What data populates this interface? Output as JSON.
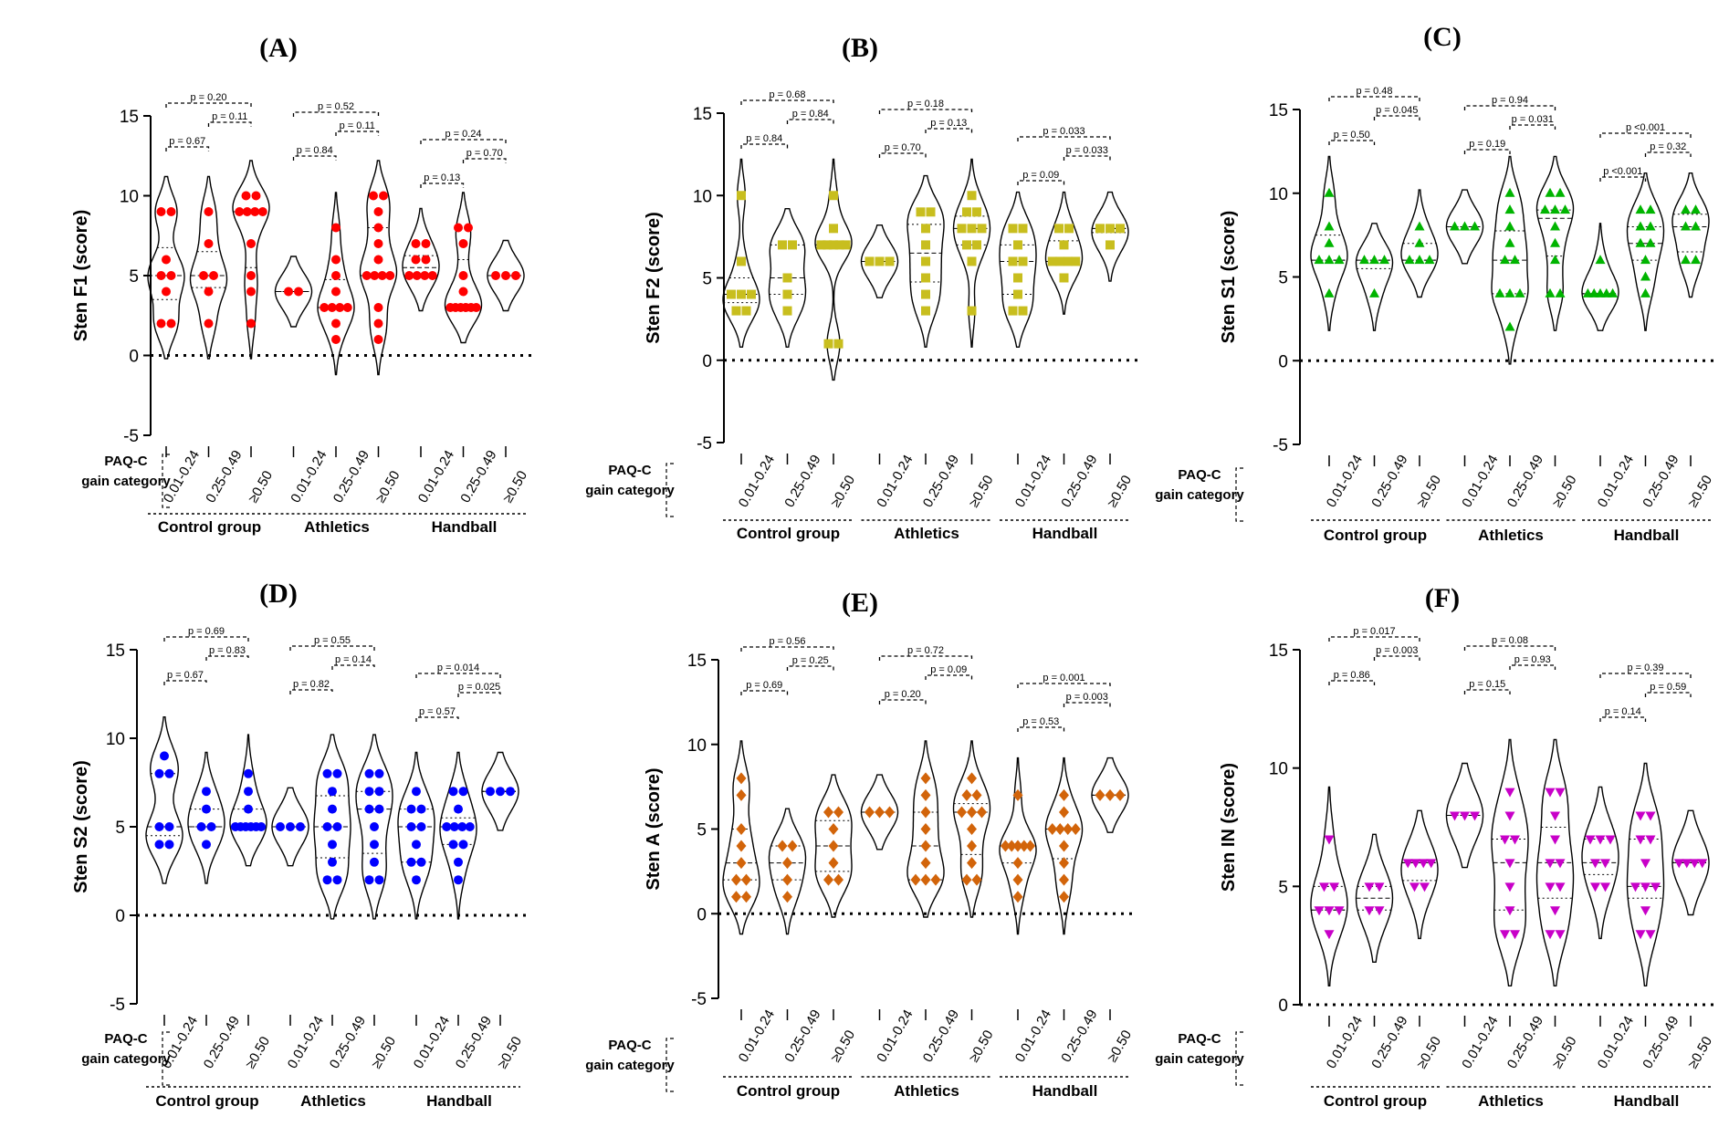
{
  "chart_data": [
    {
      "id": "A",
      "title": "(A)",
      "type": "violin",
      "ylabel": "Sten F1 (score)",
      "color": "#ff0000",
      "marker": "circle",
      "ylim": [
        -5,
        15
      ],
      "yticks": [
        -5,
        0,
        5,
        10,
        15
      ],
      "xlabel_title": [
        "PAQ-C",
        "gain category"
      ],
      "categories": [
        "0.01-0.24",
        "0.25-0.49",
        "≥0.50",
        "0.01-0.24",
        "0.25-0.49",
        "≥0.50",
        "0.01-0.24",
        "0.25-0.49",
        "≥0.50"
      ],
      "groups": [
        "Control group",
        "Athletics",
        "Handball"
      ],
      "points": [
        [
          9,
          9,
          6,
          5,
          5,
          4,
          2,
          2
        ],
        [
          9,
          7,
          5,
          5,
          4,
          2
        ],
        [
          10,
          10,
          9,
          9,
          9,
          9,
          7,
          5,
          4,
          2
        ],
        [
          4,
          4
        ],
        [
          8,
          6,
          5,
          4,
          3,
          3,
          3,
          3,
          2,
          1
        ],
        [
          10,
          10,
          9,
          8,
          7,
          6,
          5,
          5,
          5,
          5,
          3,
          2,
          1
        ],
        [
          7,
          7,
          6,
          6,
          5,
          5,
          5,
          5
        ],
        [
          8,
          8,
          7,
          5,
          4,
          3,
          3,
          3,
          3,
          3,
          3
        ],
        [
          5,
          5,
          5
        ]
      ],
      "comparisons": [
        {
          "from": 0,
          "to": 2,
          "label": "p = 0.20"
        },
        {
          "from": 0,
          "to": 1,
          "label": "p = 0.67"
        },
        {
          "from": 1,
          "to": 2,
          "label": "p = 0.11"
        },
        {
          "from": 3,
          "to": 5,
          "label": "p = 0.52"
        },
        {
          "from": 3,
          "to": 4,
          "label": "p = 0.84"
        },
        {
          "from": 4,
          "to": 5,
          "label": "p = 0.11"
        },
        {
          "from": 6,
          "to": 8,
          "label": "p = 0.24"
        },
        {
          "from": 6,
          "to": 7,
          "label": "p = 0.13"
        },
        {
          "from": 7,
          "to": 8,
          "label": "p = 0.70"
        }
      ]
    },
    {
      "id": "B",
      "title": "(B)",
      "type": "violin",
      "ylabel": "Sten F2 (score)",
      "color": "#c8be1e",
      "marker": "square",
      "ylim": [
        -5,
        15
      ],
      "yticks": [
        -5,
        0,
        5,
        10,
        15
      ],
      "xlabel_title": [
        "PAQ-C",
        "gain category"
      ],
      "categories": [
        "0.01-0.24",
        "0.25-0.49",
        "≥0.50",
        "0.01-0.24",
        "0.25-0.49",
        "≥0.50",
        "0.01-0.24",
        "0.25-0.49",
        "≥0.50"
      ],
      "groups": [
        "Control group",
        "Athletics",
        "Handball"
      ],
      "points": [
        [
          10,
          6,
          4,
          4,
          4,
          3,
          3
        ],
        [
          7,
          7,
          5,
          4,
          3
        ],
        [
          10,
          8,
          7,
          7,
          7,
          7,
          7,
          1,
          1
        ],
        [
          6,
          6,
          6
        ],
        [
          9,
          9,
          8,
          7,
          6,
          5,
          4,
          3
        ],
        [
          10,
          9,
          9,
          8,
          8,
          8,
          7,
          7,
          6,
          3
        ],
        [
          8,
          8,
          7,
          6,
          6,
          5,
          4,
          3,
          3
        ],
        [
          8,
          8,
          7,
          6,
          6,
          6,
          6,
          5
        ],
        [
          8,
          8,
          8,
          7
        ]
      ],
      "comparisons": [
        {
          "from": 0,
          "to": 2,
          "label": "p = 0.68"
        },
        {
          "from": 0,
          "to": 1,
          "label": "p = 0.84"
        },
        {
          "from": 1,
          "to": 2,
          "label": "p = 0.84"
        },
        {
          "from": 3,
          "to": 5,
          "label": "p = 0.18"
        },
        {
          "from": 3,
          "to": 4,
          "label": "p = 0.70"
        },
        {
          "from": 4,
          "to": 5,
          "label": "p = 0.13"
        },
        {
          "from": 6,
          "to": 8,
          "label": "p = 0.033"
        },
        {
          "from": 6,
          "to": 7,
          "label": "p = 0.09"
        },
        {
          "from": 7,
          "to": 8,
          "label": "p = 0.033"
        }
      ]
    },
    {
      "id": "C",
      "title": "(C)",
      "type": "violin",
      "ylabel": "Sten S1 (score)",
      "color": "#00b400",
      "marker": "triangle-up",
      "ylim": [
        -5,
        15
      ],
      "yticks": [
        -5,
        0,
        5,
        10,
        15
      ],
      "xlabel_title": [
        "PAQ-C",
        "gain category"
      ],
      "categories": [
        "0.01-0.24",
        "0.25-0.49",
        "≥0.50",
        "0.01-0.24",
        "0.25-0.49",
        "≥0.50",
        "0.01-0.24",
        "0.25-0.49",
        "≥0.50"
      ],
      "groups": [
        "Control group",
        "Athletics",
        "Handball"
      ],
      "points": [
        [
          10,
          8,
          7,
          6,
          6,
          6,
          4
        ],
        [
          6,
          6,
          6,
          4
        ],
        [
          8,
          7,
          6,
          6,
          6
        ],
        [
          8,
          8,
          8
        ],
        [
          10,
          9,
          8,
          7,
          6,
          6,
          4,
          4,
          4,
          2
        ],
        [
          10,
          10,
          9,
          9,
          9,
          8,
          7,
          6,
          4,
          4
        ],
        [
          6,
          4,
          4,
          4,
          4,
          4
        ],
        [
          9,
          9,
          8,
          8,
          7,
          7,
          6,
          5,
          4
        ],
        [
          9,
          9,
          8,
          8,
          6,
          6
        ]
      ],
      "comparisons": [
        {
          "from": 0,
          "to": 2,
          "label": "p = 0.48"
        },
        {
          "from": 0,
          "to": 1,
          "label": "p = 0.50"
        },
        {
          "from": 1,
          "to": 2,
          "label": "p = 0.045"
        },
        {
          "from": 3,
          "to": 5,
          "label": "p = 0.94"
        },
        {
          "from": 3,
          "to": 4,
          "label": "p = 0.19"
        },
        {
          "from": 4,
          "to": 5,
          "label": "p = 0.031"
        },
        {
          "from": 6,
          "to": 8,
          "label": "p <0.001"
        },
        {
          "from": 6,
          "to": 7,
          "label": "p <0.001"
        },
        {
          "from": 7,
          "to": 8,
          "label": "p = 0.32"
        }
      ]
    },
    {
      "id": "D",
      "title": "(D)",
      "type": "violin",
      "ylabel": "Sten S2 (score)",
      "color": "#0000ff",
      "marker": "circle",
      "ylim": [
        -5,
        15
      ],
      "yticks": [
        -5,
        0,
        5,
        10,
        15
      ],
      "xlabel_title": [
        "PAQ-C",
        "gain category"
      ],
      "categories": [
        "0.01-0.24",
        "0.25-0.49",
        "≥0.50",
        "0.01-0.24",
        "0.25-0.49",
        "≥0.50",
        "0.01-0.24",
        "0.25-0.49",
        "≥0.50"
      ],
      "groups": [
        "Control group",
        "Athletics",
        "Handball"
      ],
      "points": [
        [
          9,
          8,
          8,
          5,
          5,
          4,
          4
        ],
        [
          7,
          6,
          5,
          5,
          4
        ],
        [
          8,
          7,
          6,
          5,
          5,
          5,
          5,
          5,
          5
        ],
        [
          5,
          5,
          5
        ],
        [
          8,
          8,
          7,
          6,
          5,
          5,
          4,
          3,
          2,
          2
        ],
        [
          8,
          8,
          7,
          7,
          6,
          6,
          5,
          4,
          3,
          2,
          2
        ],
        [
          7,
          6,
          6,
          5,
          5,
          4,
          3,
          3,
          2
        ],
        [
          7,
          7,
          6,
          5,
          5,
          5,
          5,
          4,
          4,
          3,
          2
        ],
        [
          7,
          7,
          7
        ]
      ],
      "comparisons": [
        {
          "from": 0,
          "to": 2,
          "label": "p = 0.69"
        },
        {
          "from": 0,
          "to": 1,
          "label": "p = 0.67"
        },
        {
          "from": 1,
          "to": 2,
          "label": "p = 0.83"
        },
        {
          "from": 3,
          "to": 5,
          "label": "p = 0.55"
        },
        {
          "from": 3,
          "to": 4,
          "label": "p = 0.82"
        },
        {
          "from": 4,
          "to": 5,
          "label": "p = 0.14"
        },
        {
          "from": 6,
          "to": 8,
          "label": "p = 0.014"
        },
        {
          "from": 6,
          "to": 7,
          "label": "p = 0.57"
        },
        {
          "from": 7,
          "to": 8,
          "label": "p = 0.025"
        }
      ]
    },
    {
      "id": "E",
      "title": "(E)",
      "type": "violin",
      "ylabel": "Sten A (score)",
      "color": "#d2640a",
      "marker": "diamond",
      "ylim": [
        -5,
        15
      ],
      "yticks": [
        -5,
        0,
        5,
        10,
        15
      ],
      "xlabel_title": [
        "PAQ-C",
        "gain category"
      ],
      "categories": [
        "0.01-0.24",
        "0.25-0.49",
        "≥0.50",
        "0.01-0.24",
        "0.25-0.49",
        "≥0.50",
        "0.01-0.24",
        "0.25-0.49",
        "≥0.50"
      ],
      "groups": [
        "Control group",
        "Athletics",
        "Handball"
      ],
      "points": [
        [
          8,
          7,
          5,
          4,
          3,
          2,
          2,
          1,
          1
        ],
        [
          4,
          4,
          3,
          2,
          1
        ],
        [
          6,
          6,
          5,
          4,
          3,
          2,
          2
        ],
        [
          6,
          6,
          6
        ],
        [
          8,
          7,
          6,
          5,
          4,
          3,
          2,
          2,
          2
        ],
        [
          8,
          7,
          7,
          6,
          6,
          6,
          5,
          4,
          3,
          2,
          2
        ],
        [
          7,
          4,
          4,
          4,
          4,
          4,
          3,
          2,
          1
        ],
        [
          7,
          6,
          5,
          5,
          5,
          5,
          4,
          3,
          2,
          1
        ],
        [
          7,
          7,
          7
        ]
      ],
      "comparisons": [
        {
          "from": 0,
          "to": 2,
          "label": "p = 0.56"
        },
        {
          "from": 0,
          "to": 1,
          "label": "p = 0.69"
        },
        {
          "from": 1,
          "to": 2,
          "label": "p = 0.25"
        },
        {
          "from": 3,
          "to": 5,
          "label": "p = 0.72"
        },
        {
          "from": 3,
          "to": 4,
          "label": "p = 0.20"
        },
        {
          "from": 4,
          "to": 5,
          "label": "p = 0.09"
        },
        {
          "from": 6,
          "to": 8,
          "label": "p = 0.001"
        },
        {
          "from": 6,
          "to": 7,
          "label": "p = 0.53"
        },
        {
          "from": 7,
          "to": 8,
          "label": "p = 0.003"
        }
      ]
    },
    {
      "id": "F",
      "title": "(F)",
      "type": "violin",
      "ylabel": "Sten IN (score)",
      "color": "#c800c8",
      "marker": "triangle-down",
      "ylim": [
        0,
        15
      ],
      "yticks": [
        0,
        5,
        10,
        15
      ],
      "xlabel_title": [
        "PAQ-C",
        "gain category"
      ],
      "categories": [
        "0.01-0.24",
        "0.25-0.49",
        "≥0.50",
        "0.01-0.24",
        "0.25-0.49",
        "≥0.50",
        "0.01-0.24",
        "0.25-0.49",
        "≥0.50"
      ],
      "groups": [
        "Control group",
        "Athletics",
        "Handball"
      ],
      "points": [
        [
          7,
          5,
          5,
          4,
          4,
          4,
          3
        ],
        [
          5,
          5,
          4,
          4
        ],
        [
          6,
          6,
          6,
          6,
          5,
          5
        ],
        [
          8,
          8,
          8
        ],
        [
          9,
          8,
          7,
          7,
          6,
          5,
          4,
          3,
          3
        ],
        [
          9,
          9,
          8,
          7,
          6,
          6,
          5,
          5,
          4,
          3,
          3
        ],
        [
          7,
          7,
          7,
          6,
          6,
          5,
          5
        ],
        [
          8,
          8,
          7,
          7,
          6,
          5,
          5,
          5,
          4,
          3,
          3
        ],
        [
          6,
          6,
          6,
          6
        ]
      ],
      "comparisons": [
        {
          "from": 0,
          "to": 2,
          "label": "p = 0.017"
        },
        {
          "from": 0,
          "to": 1,
          "label": "p = 0.86"
        },
        {
          "from": 1,
          "to": 2,
          "label": "p = 0.003"
        },
        {
          "from": 3,
          "to": 5,
          "label": "p = 0.08"
        },
        {
          "from": 3,
          "to": 4,
          "label": "p = 0.15"
        },
        {
          "from": 4,
          "to": 5,
          "label": "p = 0.93"
        },
        {
          "from": 6,
          "to": 8,
          "label": "p = 0.39"
        },
        {
          "from": 6,
          "to": 7,
          "label": "p = 0.14"
        },
        {
          "from": 7,
          "to": 8,
          "label": "p = 0.59"
        }
      ]
    }
  ]
}
